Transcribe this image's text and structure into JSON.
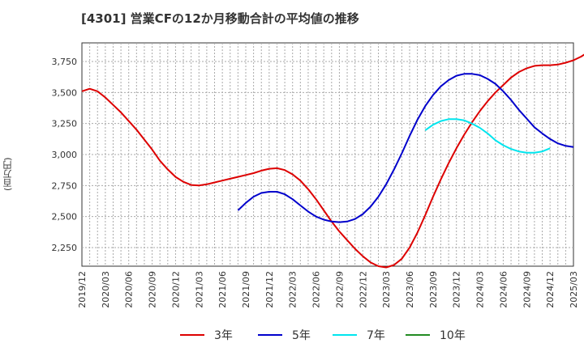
{
  "title": "[4301]  営業CFの12か月移動合計の平均値の推移",
  "chart_data": {
    "type": "line",
    "title": "[4301]  営業CFの12か月移動合計の平均値の推移",
    "ylabel": "(百万円)",
    "xlabel": "",
    "ylim": [
      2100,
      3900
    ],
    "yticks": [
      2250,
      2500,
      2750,
      3000,
      3250,
      3500,
      3750
    ],
    "ytick_labels": [
      "2,250",
      "2,500",
      "2,750",
      "3,000",
      "3,250",
      "3,500",
      "3,750"
    ],
    "xlim": [
      "2019-12",
      "2025-03"
    ],
    "xtick_labels": [
      "2019/12",
      "2020/03",
      "2020/06",
      "2020/09",
      "2020/12",
      "2021/03",
      "2021/06",
      "2021/09",
      "2021/12",
      "2022/03",
      "2022/06",
      "2022/09",
      "2022/12",
      "2023/03",
      "2023/06",
      "2023/09",
      "2023/12",
      "2024/03",
      "2024/06",
      "2024/09",
      "2024/12",
      "2025/03"
    ],
    "grid": true,
    "legend_position": "bottom",
    "series": [
      {
        "name": "3年",
        "color": "#dd0000",
        "start": "2019-12",
        "values": [
          3510,
          3530,
          3510,
          3460,
          3400,
          3340,
          3270,
          3200,
          3120,
          3040,
          2950,
          2880,
          2820,
          2780,
          2755,
          2750,
          2760,
          2775,
          2790,
          2805,
          2820,
          2835,
          2850,
          2870,
          2885,
          2890,
          2875,
          2840,
          2790,
          2720,
          2640,
          2550,
          2460,
          2380,
          2310,
          2240,
          2180,
          2130,
          2100,
          2090,
          2110,
          2160,
          2250,
          2370,
          2510,
          2660,
          2800,
          2930,
          3050,
          3160,
          3260,
          3350,
          3430,
          3500,
          3560,
          3620,
          3665,
          3695,
          3715,
          3720,
          3720,
          3725,
          3740,
          3760,
          3790,
          3830,
          3870,
          3915
        ]
      },
      {
        "name": "5年",
        "color": "#0000cc",
        "start": "2021-08",
        "values": [
          2550,
          2610,
          2660,
          2690,
          2700,
          2700,
          2680,
          2640,
          2590,
          2540,
          2500,
          2475,
          2460,
          2455,
          2460,
          2480,
          2520,
          2580,
          2660,
          2760,
          2880,
          3010,
          3150,
          3280,
          3390,
          3480,
          3550,
          3600,
          3635,
          3650,
          3650,
          3640,
          3610,
          3570,
          3510,
          3440,
          3360,
          3290,
          3220,
          3170,
          3125,
          3090,
          3070,
          3060
        ]
      },
      {
        "name": "7年",
        "color": "#00e5ee",
        "start": "2023-08",
        "values": [
          3195,
          3240,
          3270,
          3285,
          3285,
          3275,
          3250,
          3215,
          3170,
          3115,
          3075,
          3045,
          3025,
          3015,
          3015,
          3025,
          3050
        ]
      },
      {
        "name": "10年",
        "color": "#228b22",
        "start": "2023-08",
        "values": []
      }
    ]
  }
}
